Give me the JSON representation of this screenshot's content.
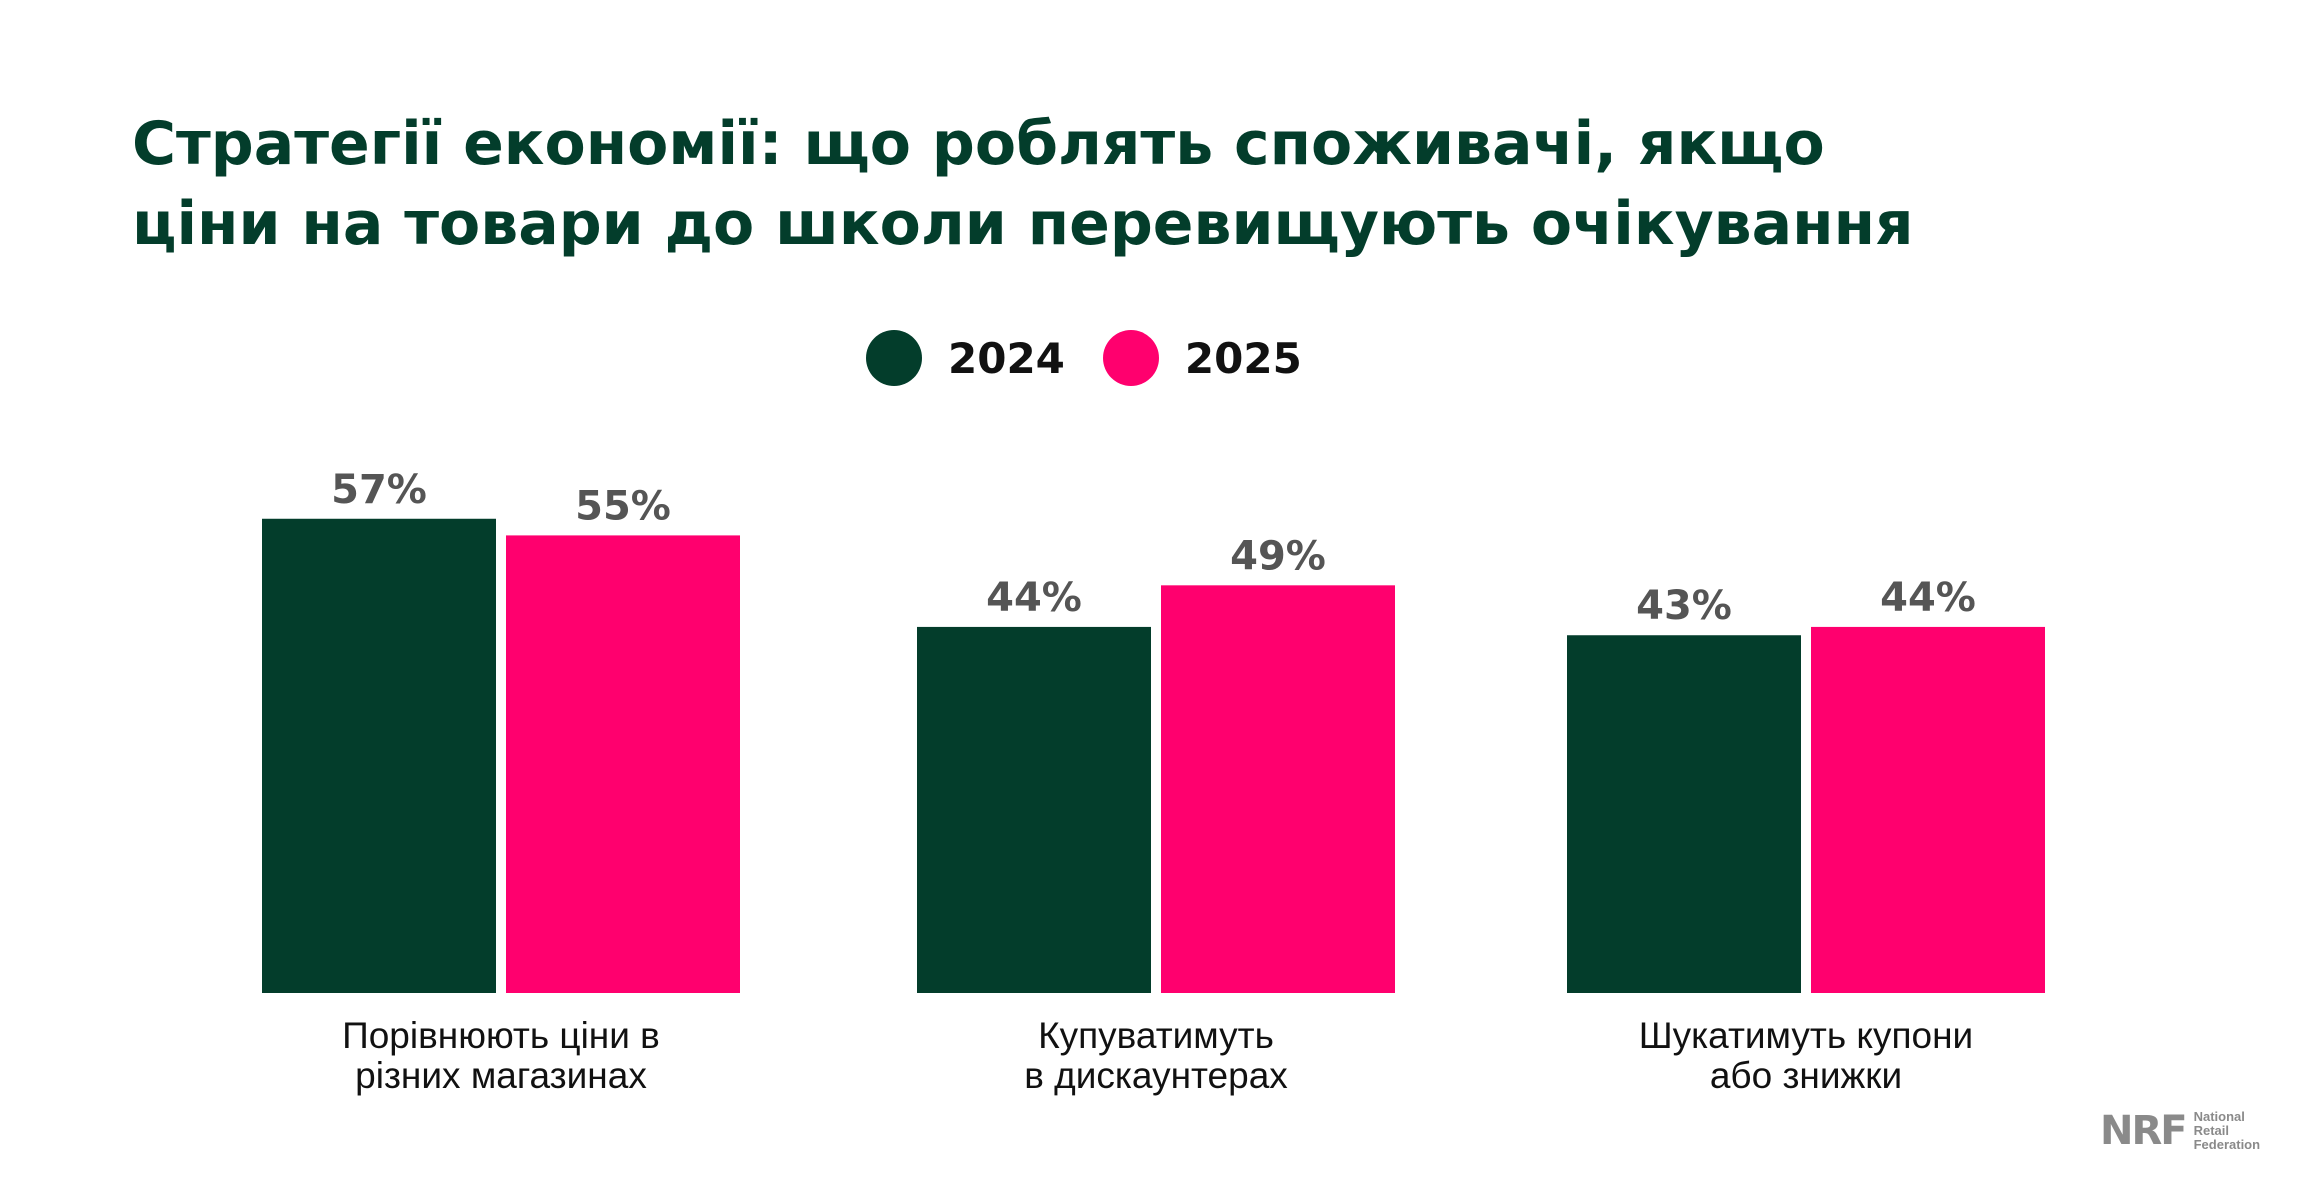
{
  "title": {
    "line1": "Стратегії економії: що роблять споживачі, якщо",
    "line2": "ціни на товари до школи перевищують очікування"
  },
  "legend": [
    {
      "label": "2024",
      "color": "#033d2b"
    },
    {
      "label": "2025",
      "color": "#ff006e"
    }
  ],
  "chart_data": {
    "type": "bar",
    "title": "Стратегії економії: що роблять споживачі, якщо ціни на товари до школи перевищують очікування",
    "categories": [
      [
        "Порівнюють ціни в",
        "різних магазинах"
      ],
      [
        "Купуватимуть",
        "в дискаунтерах"
      ],
      [
        "Шукатимуть купони",
        "або знижки"
      ]
    ],
    "series": [
      {
        "name": "2024",
        "color": "#033d2b",
        "values": [
          57,
          44,
          43
        ],
        "labels": [
          "57%",
          "44%",
          "43%"
        ]
      },
      {
        "name": "2025",
        "color": "#ff006e",
        "values": [
          55,
          49,
          44
        ],
        "labels": [
          "55%",
          "49%",
          "44%"
        ]
      }
    ],
    "ylim": [
      0,
      60
    ],
    "grid": false,
    "legend_position": "top-center",
    "xlabel": "",
    "ylabel": ""
  },
  "logo": {
    "mark": "NRF",
    "text": [
      "National",
      "Retail",
      "Federation"
    ]
  }
}
